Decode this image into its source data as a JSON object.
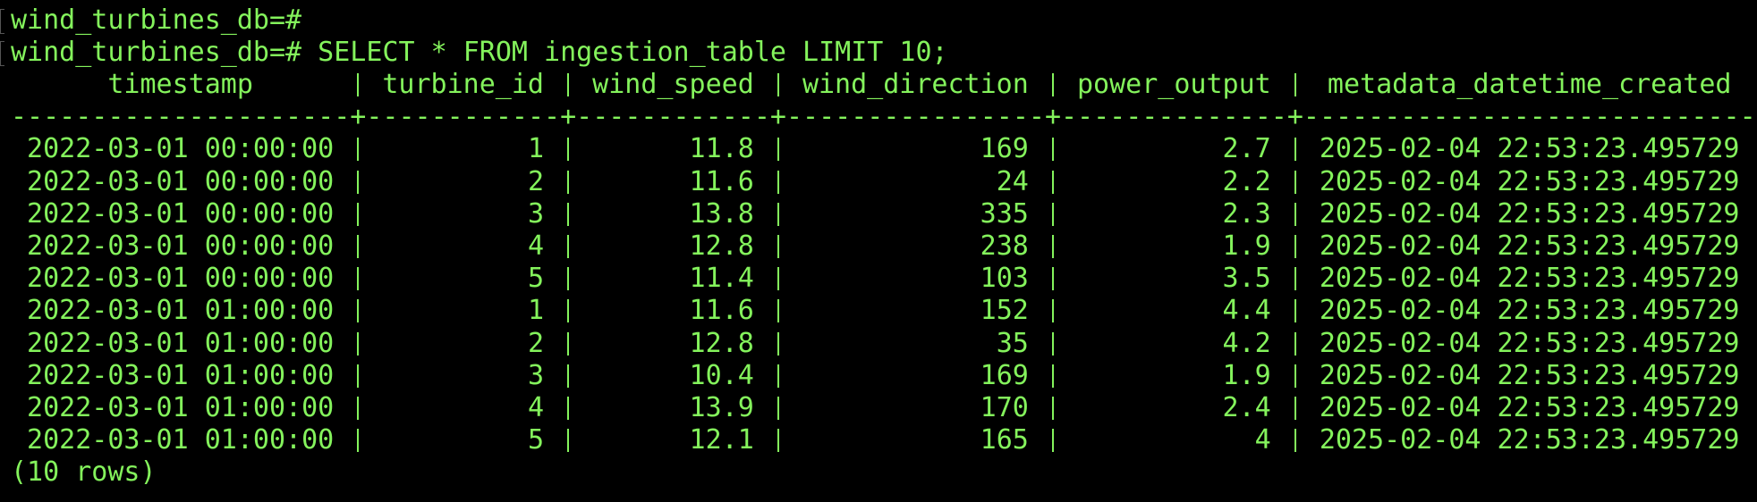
{
  "prompt": {
    "lines": [
      "wind_turbines_db=#",
      "wind_turbines_db=# SELECT * FROM ingestion_table LIMIT 10;"
    ]
  },
  "table": {
    "columns": [
      "timestamp",
      "turbine_id",
      "wind_speed",
      "wind_direction",
      "power_output",
      "metadata_datetime_created"
    ],
    "separator": "---------------------+------------+------------+----------------+--------------+----------------------------",
    "rows": [
      [
        "2022-03-01 00:00:00",
        1,
        11.8,
        169,
        2.7,
        "2025-02-04 22:53:23.495729"
      ],
      [
        "2022-03-01 00:00:00",
        2,
        11.6,
        24,
        2.2,
        "2025-02-04 22:53:23.495729"
      ],
      [
        "2022-03-01 00:00:00",
        3,
        13.8,
        335,
        2.3,
        "2025-02-04 22:53:23.495729"
      ],
      [
        "2022-03-01 00:00:00",
        4,
        12.8,
        238,
        1.9,
        "2025-02-04 22:53:23.495729"
      ],
      [
        "2022-03-01 00:00:00",
        5,
        11.4,
        103,
        3.5,
        "2025-02-04 22:53:23.495729"
      ],
      [
        "2022-03-01 01:00:00",
        1,
        11.6,
        152,
        4.4,
        "2025-02-04 22:53:23.495729"
      ],
      [
        "2022-03-01 01:00:00",
        2,
        12.8,
        35,
        4.2,
        "2025-02-04 22:53:23.495729"
      ],
      [
        "2022-03-01 01:00:00",
        3,
        10.4,
        169,
        1.9,
        "2025-02-04 22:53:23.495729"
      ],
      [
        "2022-03-01 01:00:00",
        4,
        13.9,
        170,
        2.4,
        "2025-02-04 22:53:23.495729"
      ],
      [
        "2022-03-01 01:00:00",
        5,
        12.1,
        165,
        4,
        "2025-02-04 22:53:23.495729"
      ]
    ]
  },
  "footer": "(10 rows)"
}
